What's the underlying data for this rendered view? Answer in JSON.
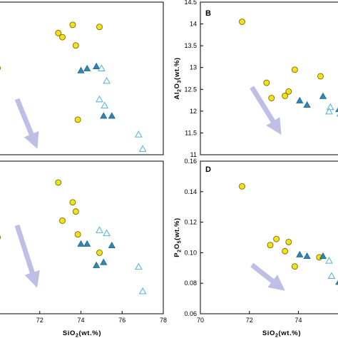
{
  "colors": {
    "circle_fill": "#f2e21a",
    "circle_stroke": "#7a6a00",
    "triangle_filled": "#2e86b5",
    "triangle_open_stroke": "#4fb3d9",
    "arrow": "#bfbfe6",
    "frame": "#000000"
  },
  "chart_data": [
    {
      "panel": "A",
      "type": "scatter",
      "label_visible": false,
      "xlim": [
        70,
        78
      ],
      "xticks": [],
      "ylim": [
        10.8,
        14.5
      ],
      "yticks": [],
      "xlabel": "",
      "ylabel": "",
      "series": [
        {
          "marker": "circle",
          "points": [
            [
              69.95,
              12.9
            ],
            [
              72.9,
              13.75
            ],
            [
              73.1,
              13.65
            ],
            [
              73.6,
              13.95
            ],
            [
              73.75,
              13.45
            ],
            [
              73.85,
              11.65
            ],
            [
              74.9,
              13.9
            ]
          ]
        },
        {
          "marker": "triangle-filled",
          "points": [
            [
              74.0,
              12.85
            ],
            [
              74.3,
              12.9
            ],
            [
              74.75,
              12.95
            ],
            [
              75.1,
              11.75
            ],
            [
              75.5,
              11.75
            ]
          ]
        },
        {
          "marker": "triangle-open",
          "points": [
            [
              75.0,
              12.9
            ],
            [
              75.25,
              12.6
            ],
            [
              74.9,
              12.15
            ],
            [
              75.15,
              12.0
            ],
            [
              76.8,
              11.3
            ],
            [
              77.0,
              10.95
            ]
          ]
        }
      ],
      "arrow": {
        "from": [
          70.9,
          12.15
        ],
        "to": [
          71.8,
          11.05
        ]
      }
    },
    {
      "panel": "B",
      "type": "scatter",
      "label": "B",
      "xlim": [
        70,
        78
      ],
      "xticks": [],
      "ylim": [
        11,
        14.5
      ],
      "yticks": [
        "11",
        "11.5",
        "12",
        "12.5",
        "13",
        "13.5",
        "14",
        "14.5"
      ],
      "xlabel": "",
      "ylabel": "Al2O3(wt.%)",
      "ylabel_main": "Al",
      "ylabel_sub1": "2",
      "ylabel_mid": "O",
      "ylabel_sub2": "3",
      "ylabel_tail": "(wt.%)",
      "series": [
        {
          "marker": "circle",
          "points": [
            [
              71.7,
              14.05
            ],
            [
              72.7,
              12.65
            ],
            [
              72.9,
              12.3
            ],
            [
              73.45,
              12.35
            ],
            [
              73.6,
              12.45
            ],
            [
              73.85,
              12.95
            ],
            [
              74.9,
              12.8
            ]
          ]
        },
        {
          "marker": "triangle-filled",
          "points": [
            [
              74.05,
              12.25
            ],
            [
              74.35,
              12.15
            ],
            [
              75.0,
              12.35
            ],
            [
              75.65,
              12.05
            ]
          ]
        },
        {
          "marker": "triangle-open",
          "points": [
            [
              75.3,
              12.1
            ],
            [
              75.25,
              12.0
            ],
            [
              75.7,
              11.95
            ]
          ]
        }
      ],
      "arrow": {
        "from": [
          72.1,
          12.55
        ],
        "to": [
          73.2,
          11.55
        ]
      }
    },
    {
      "panel": "C",
      "type": "scatter",
      "label_visible": false,
      "xlim": [
        70,
        78
      ],
      "xticks": [
        "72",
        "74",
        "76",
        "78"
      ],
      "ylim": [
        0,
        1
      ],
      "yticks": [],
      "xlabel": "SiO2(wt.%)",
      "xlabel_main": "SiO",
      "xlabel_sub": "2",
      "xlabel_tail": "(wt.%)",
      "series": [
        {
          "marker": "circle",
          "points": [
            [
              69.95,
              0.5
            ],
            [
              72.9,
              0.86
            ],
            [
              73.1,
              0.61
            ],
            [
              73.6,
              0.73
            ],
            [
              73.75,
              0.67
            ],
            [
              73.85,
              0.52
            ],
            [
              74.9,
              0.4
            ]
          ]
        },
        {
          "marker": "triangle-filled",
          "points": [
            [
              74.0,
              0.46
            ],
            [
              74.3,
              0.46
            ],
            [
              74.75,
              0.32
            ],
            [
              75.1,
              0.34
            ],
            [
              75.5,
              0.45
            ]
          ]
        },
        {
          "marker": "triangle-open",
          "points": [
            [
              74.9,
              0.55
            ],
            [
              75.25,
              0.53
            ],
            [
              76.8,
              0.31
            ],
            [
              77.0,
              0.15
            ]
          ]
        }
      ],
      "arrow": {
        "from": [
          70.9,
          0.58
        ],
        "to": [
          71.8,
          0.2
        ]
      }
    },
    {
      "panel": "D",
      "type": "scatter",
      "label": "D",
      "xlim": [
        70,
        78
      ],
      "xticks": [
        "70",
        "72",
        "74"
      ],
      "ylim": [
        0.06,
        0.16
      ],
      "yticks": [
        "0.06",
        "0.08",
        "0.10",
        "0.12",
        "0.14",
        "0.16"
      ],
      "xlabel": "SiO2(wt.%)",
      "xlabel_main": "SiO",
      "xlabel_sub": "2",
      "xlabel_tail": "(wt.%)",
      "ylabel": "P2O5(wt.%)",
      "ylabel_main": "P",
      "ylabel_sub1": "2",
      "ylabel_mid": "O",
      "ylabel_sub2": "5",
      "ylabel_tail": "(wt.%)",
      "series": [
        {
          "marker": "circle",
          "points": [
            [
              71.7,
              0.1435
            ],
            [
              72.85,
              0.105
            ],
            [
              73.1,
              0.109
            ],
            [
              73.45,
              0.101
            ],
            [
              73.6,
              0.107
            ],
            [
              73.85,
              0.091
            ],
            [
              74.85,
              0.097
            ]
          ]
        },
        {
          "marker": "triangle-filled",
          "points": [
            [
              74.05,
              0.099
            ],
            [
              74.35,
              0.098
            ],
            [
              75.0,
              0.098
            ],
            [
              75.65,
              0.081
            ]
          ]
        },
        {
          "marker": "triangle-open",
          "points": [
            [
              75.25,
              0.095
            ],
            [
              75.35,
              0.085
            ],
            [
              75.75,
              0.077
            ]
          ]
        }
      ],
      "arrow": {
        "from": [
          72.1,
          0.092
        ],
        "to": [
          73.3,
          0.077
        ]
      }
    }
  ]
}
